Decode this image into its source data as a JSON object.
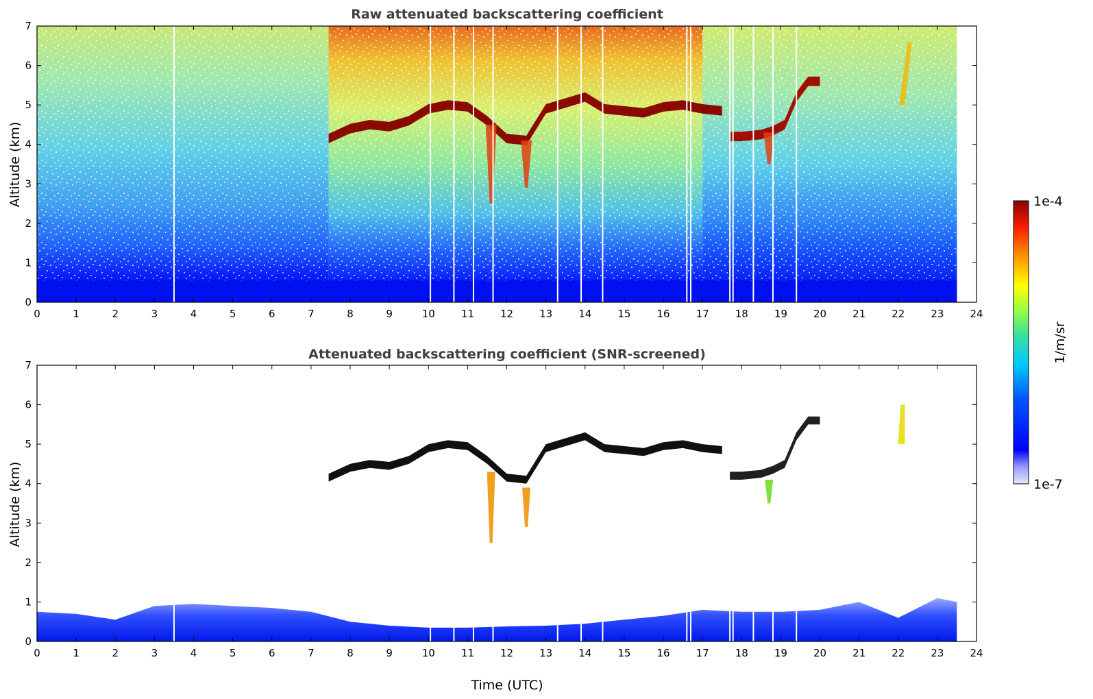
{
  "chart_data": [
    {
      "type": "heatmap",
      "title": "Raw attenuated backscattering coefficient",
      "xlabel": "",
      "ylabel": "Altitude (km)",
      "xlim": [
        0,
        24
      ],
      "ylim": [
        0,
        7
      ],
      "xticks": [
        "0",
        "1",
        "2",
        "3",
        "4",
        "5",
        "6",
        "7",
        "8",
        "9",
        "10",
        "11",
        "12",
        "13",
        "14",
        "15",
        "16",
        "17",
        "18",
        "19",
        "20",
        "21",
        "22",
        "23",
        "24"
      ],
      "yticks": [
        "0",
        "1",
        "2",
        "3",
        "4",
        "5",
        "6",
        "7"
      ],
      "data_end_time": 23.5,
      "noisy_background": true,
      "cloud_layer": {
        "time": [
          7.45,
          8.0,
          8.5,
          9.0,
          9.5,
          10.0,
          10.5,
          11.0,
          11.5,
          12.0,
          12.5,
          13.0,
          13.5,
          14.0,
          14.5,
          15.0,
          15.5,
          16.0,
          16.5,
          17.0,
          17.5
        ],
        "altitude_km": [
          4.15,
          4.4,
          4.5,
          4.45,
          4.6,
          4.9,
          5.0,
          4.95,
          4.6,
          4.15,
          4.1,
          4.9,
          5.05,
          5.2,
          4.9,
          4.85,
          4.8,
          4.95,
          5.0,
          4.9,
          4.85
        ]
      },
      "cloud_layer_2": {
        "time": [
          17.7,
          18.0,
          18.5,
          18.8,
          19.1,
          19.4,
          19.7,
          20.0
        ],
        "altitude_km": [
          4.2,
          4.2,
          4.25,
          4.35,
          4.5,
          5.2,
          5.6,
          5.6
        ]
      },
      "fall_streaks": [
        {
          "time": 11.6,
          "top_km": 4.5,
          "bottom_km": 2.5
        },
        {
          "time": 12.5,
          "top_km": 4.1,
          "bottom_km": 2.9
        },
        {
          "time": 18.7,
          "top_km": 4.3,
          "bottom_km": 3.5
        }
      ],
      "isolated_feature": {
        "time": 22.1,
        "bottom_km": 5.0,
        "top_km": 6.6
      }
    },
    {
      "type": "heatmap",
      "title": "Attenuated backscattering coefficient (SNR-screened)",
      "xlabel": "Time (UTC)",
      "ylabel": "Altitude (km)",
      "xlim": [
        0,
        24
      ],
      "ylim": [
        0,
        7
      ],
      "xticks": [
        "0",
        "1",
        "2",
        "3",
        "4",
        "5",
        "6",
        "7",
        "8",
        "9",
        "10",
        "11",
        "12",
        "13",
        "14",
        "15",
        "16",
        "17",
        "18",
        "19",
        "20",
        "21",
        "22",
        "23",
        "24"
      ],
      "yticks": [
        "0",
        "1",
        "2",
        "3",
        "4",
        "5",
        "6",
        "7"
      ],
      "boundary_layer": {
        "time": [
          0,
          1,
          2,
          3,
          4,
          5,
          6,
          7,
          8,
          9,
          10,
          11,
          12,
          13,
          14,
          15,
          16,
          17,
          18,
          19,
          20,
          21,
          22,
          23,
          23.5
        ],
        "top_km": [
          0.75,
          0.7,
          0.55,
          0.9,
          0.95,
          0.9,
          0.85,
          0.75,
          0.5,
          0.4,
          0.35,
          0.35,
          0.38,
          0.4,
          0.45,
          0.55,
          0.65,
          0.8,
          0.75,
          0.75,
          0.8,
          1.0,
          0.6,
          1.1,
          1.0
        ]
      }
    }
  ],
  "colorbar": {
    "max_label": "1e-4",
    "min_label": "1e-7",
    "unit_label": "1/m/sr"
  },
  "colors": {
    "low": "#0000ff",
    "mid": "#00c8c8",
    "high_mid": "#ffff00",
    "high": "#8b0000"
  }
}
